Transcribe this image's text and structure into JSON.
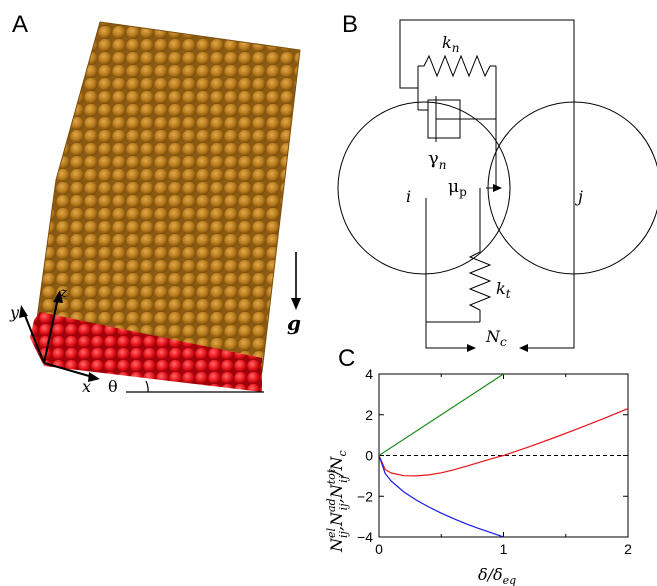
{
  "panels": {
    "a": {
      "letter": "A",
      "axis_x": "x",
      "axis_y": "y",
      "axis_z": "z",
      "angle": "θ",
      "gravity": "g",
      "colors": {
        "bulk": "#b87a1c",
        "base": "#e8141c"
      }
    },
    "b": {
      "letter": "B",
      "label_i": "i",
      "label_j": "j",
      "kn_base": "k",
      "kn_sub": "n",
      "gamma_base": "γ",
      "gamma_sub": "n",
      "mu_base": "μ",
      "mu_sub": "p",
      "kt_base": "k",
      "kt_sub": "t",
      "nc_base": "N",
      "nc_sub": "c"
    },
    "c": {
      "letter": "C",
      "ylabel": {
        "part1_base": "N",
        "part1_sup": "el",
        "part1_sub": "ij",
        "part2_base": "N",
        "part2_sup": "ad",
        "part2_sub": "ij",
        "part3_base": "N",
        "part3_sup": "tot",
        "part3_sub": "ij",
        "tail": "/N",
        "tail_sub": "c",
        "sep": ","
      },
      "xlabel": {
        "base": "δ/δ",
        "sub": "eq"
      }
    }
  },
  "chart_data": {
    "type": "line",
    "xlim": [
      0,
      2
    ],
    "ylim": [
      -4,
      4
    ],
    "xticks": [
      0,
      1,
      2
    ],
    "yticks": [
      -4,
      -2,
      0,
      2,
      4
    ],
    "xticklabels": [
      "0",
      "1",
      "2"
    ],
    "yticklabels": [
      "−4",
      "−2",
      "0",
      "2",
      "4"
    ],
    "reference_line": {
      "y": 0,
      "style": "dashed"
    },
    "series": [
      {
        "color": "#1a8a1a",
        "x": [
          0,
          0.5,
          1.0
        ],
        "y": [
          0,
          2.0,
          4.0
        ]
      },
      {
        "color": "#e8141c",
        "x": [
          0,
          0.05,
          0.1,
          0.2,
          0.3,
          0.4,
          0.5,
          0.6,
          0.7,
          0.8,
          0.9,
          1.0,
          1.2,
          1.4,
          1.6,
          1.8,
          2.0
        ],
        "y": [
          0,
          -0.69,
          -0.86,
          -0.99,
          -1.0,
          -0.95,
          -0.85,
          -0.7,
          -0.53,
          -0.35,
          -0.16,
          0,
          0.41,
          0.86,
          1.32,
          1.8,
          2.3
        ]
      },
      {
        "color": "#1a1ae8",
        "x": [
          0,
          0.05,
          0.1,
          0.2,
          0.3,
          0.4,
          0.5,
          0.6,
          0.7,
          0.8,
          0.9,
          1.0
        ],
        "y": [
          0,
          -0.89,
          -1.26,
          -1.79,
          -2.19,
          -2.53,
          -2.83,
          -3.1,
          -3.35,
          -3.58,
          -3.79,
          -4.0
        ]
      }
    ]
  }
}
